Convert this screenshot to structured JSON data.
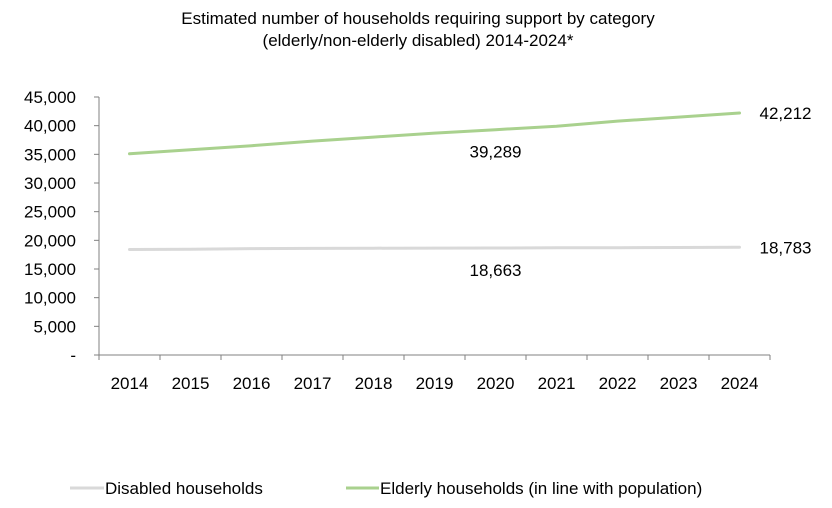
{
  "chart_data": {
    "type": "line",
    "title_lines": [
      "Estimated number of households requiring support by category",
      "(elderly/non-elderly disabled) 2014-2024*"
    ],
    "xlabel": "",
    "ylabel": "",
    "x": [
      "2014",
      "2015",
      "2016",
      "2017",
      "2018",
      "2019",
      "2020",
      "2021",
      "2022",
      "2023",
      "2024"
    ],
    "ylim": [
      0,
      45000
    ],
    "yticks": [
      {
        "value": 0,
        "label": "-"
      },
      {
        "value": 5000,
        "label": "5,000"
      },
      {
        "value": 10000,
        "label": "10,000"
      },
      {
        "value": 15000,
        "label": "15,000"
      },
      {
        "value": 20000,
        "label": "20,000"
      },
      {
        "value": 25000,
        "label": "25,000"
      },
      {
        "value": 30000,
        "label": "30,000"
      },
      {
        "value": 35000,
        "label": "35,000"
      },
      {
        "value": 40000,
        "label": "40,000"
      },
      {
        "value": 45000,
        "label": "45,000"
      }
    ],
    "grid": false,
    "legend_position": "bottom",
    "series": [
      {
        "name": "Disabled households",
        "color": "#d9d9d9",
        "values": [
          18400,
          18450,
          18550,
          18600,
          18630,
          18650,
          18663,
          18690,
          18720,
          18750,
          18783
        ],
        "labels": [
          {
            "index": 6,
            "text": "18,663",
            "placement": "below"
          },
          {
            "index": 10,
            "text": "18,783",
            "placement": "right"
          }
        ]
      },
      {
        "name": "Elderly households (in line with population)",
        "color": "#a9d18e",
        "values": [
          35100,
          35800,
          36500,
          37300,
          38000,
          38700,
          39289,
          39900,
          40800,
          41500,
          42212
        ],
        "labels": [
          {
            "index": 6,
            "text": "39,289",
            "placement": "below"
          },
          {
            "index": 10,
            "text": "42,212",
            "placement": "right"
          }
        ]
      }
    ]
  }
}
